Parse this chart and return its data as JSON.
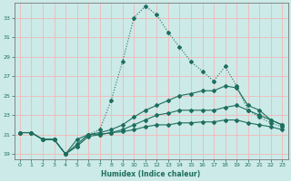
{
  "xlabel": "Humidex (Indice chaleur)",
  "bg_color": "#cceae8",
  "grid_color": "#f0b8b8",
  "line_color": "#1e6e5e",
  "xlim": [
    -0.5,
    23.5
  ],
  "ylim": [
    18.5,
    34.5
  ],
  "yticks": [
    19,
    21,
    23,
    25,
    27,
    29,
    31,
    33
  ],
  "xticks": [
    0,
    1,
    2,
    3,
    4,
    5,
    6,
    7,
    8,
    9,
    10,
    11,
    12,
    13,
    14,
    15,
    16,
    17,
    18,
    19,
    20,
    21,
    22,
    23
  ],
  "series": [
    {
      "x": [
        0,
        1,
        2,
        3,
        4,
        5,
        6,
        7,
        8,
        9,
        10,
        11,
        12,
        13,
        14,
        15,
        16,
        17,
        18,
        19,
        20,
        21,
        22,
        23
      ],
      "y": [
        21.2,
        21.2,
        20.5,
        20.5,
        19.0,
        19.8,
        21.0,
        21.5,
        24.5,
        28.5,
        33.0,
        34.2,
        33.3,
        31.5,
        30.0,
        28.5,
        27.5,
        26.5,
        28.0,
        26.0,
        23.5,
        22.8,
        22.2,
        21.8
      ],
      "linestyle": "dotted"
    },
    {
      "x": [
        0,
        1,
        2,
        3,
        4,
        5,
        6,
        7,
        8,
        9,
        10,
        11,
        12,
        13,
        14,
        15,
        16,
        17,
        18,
        19,
        20,
        21,
        22,
        23
      ],
      "y": [
        21.2,
        21.2,
        20.5,
        20.5,
        19.0,
        20.5,
        21.0,
        21.2,
        21.5,
        22.0,
        22.8,
        23.5,
        24.0,
        24.5,
        25.0,
        25.2,
        25.5,
        25.5,
        26.0,
        25.8,
        24.0,
        23.5,
        22.5,
        22.0
      ],
      "linestyle": "solid"
    },
    {
      "x": [
        0,
        1,
        2,
        3,
        4,
        5,
        6,
        7,
        8,
        9,
        10,
        11,
        12,
        13,
        14,
        15,
        16,
        17,
        18,
        19,
        20,
        21,
        22,
        23
      ],
      "y": [
        21.2,
        21.2,
        20.5,
        20.5,
        19.0,
        20.0,
        21.0,
        21.0,
        21.2,
        21.5,
        22.0,
        22.5,
        23.0,
        23.2,
        23.5,
        23.5,
        23.5,
        23.5,
        23.8,
        24.0,
        23.5,
        23.0,
        22.5,
        22.0
      ],
      "linestyle": "solid"
    },
    {
      "x": [
        0,
        1,
        2,
        3,
        4,
        5,
        6,
        7,
        8,
        9,
        10,
        11,
        12,
        13,
        14,
        15,
        16,
        17,
        18,
        19,
        20,
        21,
        22,
        23
      ],
      "y": [
        21.2,
        21.2,
        20.5,
        20.5,
        19.0,
        19.8,
        20.8,
        21.0,
        21.2,
        21.3,
        21.5,
        21.8,
        22.0,
        22.0,
        22.2,
        22.2,
        22.3,
        22.3,
        22.5,
        22.5,
        22.2,
        22.0,
        21.8,
        21.5
      ],
      "linestyle": "solid"
    }
  ]
}
